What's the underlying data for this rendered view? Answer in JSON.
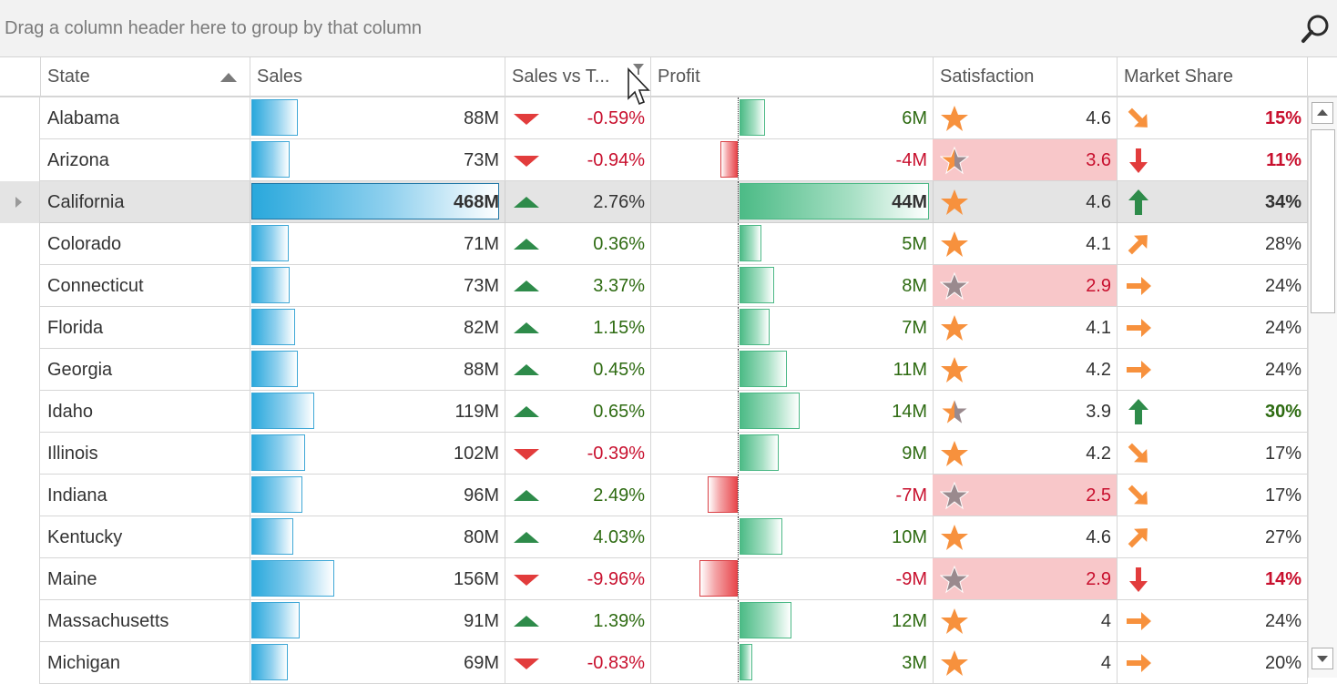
{
  "group_panel": {
    "hint": "Drag a column header here to group by that column"
  },
  "columns": {
    "state": "State",
    "sales": "Sales",
    "sales_vs_target": "Sales vs T...",
    "profit": "Profit",
    "satisfaction": "Satisfaction",
    "market_share": "Market Share"
  },
  "colors": {
    "positive": "#2e6b12",
    "negative": "#c8102e",
    "sales_bar": "#29a8dc",
    "profit_bar": "#4cbb86",
    "loss_bar": "#e8474c",
    "star": "#f7913d",
    "star_low": "#9a8a8e"
  },
  "rows": [
    {
      "state": "Alabama",
      "sales": "88M",
      "sales_value": 88,
      "trend": "down",
      "vs_target": "-0.59%",
      "profit": "6M",
      "profit_value": 6,
      "satisfaction": "4.6",
      "sat_value": 4.6,
      "share_arrow": "down-right",
      "share": "15%",
      "share_style": "neg-bold"
    },
    {
      "state": "Arizona",
      "sales": "73M",
      "sales_value": 73,
      "trend": "down",
      "vs_target": "-0.94%",
      "profit": "-4M",
      "profit_value": -4,
      "satisfaction": "3.6",
      "sat_value": 3.6,
      "share_arrow": "down",
      "share": "11%",
      "share_style": "neg-bold"
    },
    {
      "state": "California",
      "sales": "468M",
      "sales_value": 468,
      "trend": "up",
      "vs_target": "2.76%",
      "profit": "44M",
      "profit_value": 44,
      "satisfaction": "4.6",
      "sat_value": 4.6,
      "share_arrow": "up",
      "share": "34%",
      "share_style": "bold-dark"
    },
    {
      "state": "Colorado",
      "sales": "71M",
      "sales_value": 71,
      "trend": "up",
      "vs_target": "0.36%",
      "profit": "5M",
      "profit_value": 5,
      "satisfaction": "4.1",
      "sat_value": 4.1,
      "share_arrow": "up-right",
      "share": "28%",
      "share_style": "normal"
    },
    {
      "state": "Connecticut",
      "sales": "73M",
      "sales_value": 73,
      "trend": "up",
      "vs_target": "3.37%",
      "profit": "8M",
      "profit_value": 8,
      "satisfaction": "2.9",
      "sat_value": 2.9,
      "share_arrow": "right",
      "share": "24%",
      "share_style": "normal"
    },
    {
      "state": "Florida",
      "sales": "82M",
      "sales_value": 82,
      "trend": "up",
      "vs_target": "1.15%",
      "profit": "7M",
      "profit_value": 7,
      "satisfaction": "4.1",
      "sat_value": 4.1,
      "share_arrow": "right",
      "share": "24%",
      "share_style": "normal"
    },
    {
      "state": "Georgia",
      "sales": "88M",
      "sales_value": 88,
      "trend": "up",
      "vs_target": "0.45%",
      "profit": "11M",
      "profit_value": 11,
      "satisfaction": "4.2",
      "sat_value": 4.2,
      "share_arrow": "right",
      "share": "24%",
      "share_style": "normal"
    },
    {
      "state": "Idaho",
      "sales": "119M",
      "sales_value": 119,
      "trend": "up",
      "vs_target": "0.65%",
      "profit": "14M",
      "profit_value": 14,
      "satisfaction": "3.9",
      "sat_value": 3.9,
      "share_arrow": "up",
      "share": "30%",
      "share_style": "pos-bold"
    },
    {
      "state": "Illinois",
      "sales": "102M",
      "sales_value": 102,
      "trend": "down",
      "vs_target": "-0.39%",
      "profit": "9M",
      "profit_value": 9,
      "satisfaction": "4.2",
      "sat_value": 4.2,
      "share_arrow": "down-right",
      "share": "17%",
      "share_style": "normal"
    },
    {
      "state": "Indiana",
      "sales": "96M",
      "sales_value": 96,
      "trend": "up",
      "vs_target": "2.49%",
      "profit": "-7M",
      "profit_value": -7,
      "satisfaction": "2.5",
      "sat_value": 2.5,
      "share_arrow": "down-right",
      "share": "17%",
      "share_style": "normal"
    },
    {
      "state": "Kentucky",
      "sales": "80M",
      "sales_value": 80,
      "trend": "up",
      "vs_target": "4.03%",
      "profit": "10M",
      "profit_value": 10,
      "satisfaction": "4.6",
      "sat_value": 4.6,
      "share_arrow": "up-right",
      "share": "27%",
      "share_style": "normal"
    },
    {
      "state": "Maine",
      "sales": "156M",
      "sales_value": 156,
      "trend": "down",
      "vs_target": "-9.96%",
      "profit": "-9M",
      "profit_value": -9,
      "satisfaction": "2.9",
      "sat_value": 2.9,
      "share_arrow": "down",
      "share": "14%",
      "share_style": "neg-bold"
    },
    {
      "state": "Massachusetts",
      "sales": "91M",
      "sales_value": 91,
      "trend": "up",
      "vs_target": "1.39%",
      "profit": "12M",
      "profit_value": 12,
      "satisfaction": "4",
      "sat_value": 4,
      "share_arrow": "right",
      "share": "24%",
      "share_style": "normal"
    },
    {
      "state": "Michigan",
      "sales": "69M",
      "sales_value": 69,
      "trend": "down",
      "vs_target": "-0.83%",
      "profit": "3M",
      "profit_value": 3,
      "satisfaction": "4",
      "sat_value": 4,
      "share_arrow": "right",
      "share": "20%",
      "share_style": "normal"
    }
  ],
  "selected_state": "California"
}
